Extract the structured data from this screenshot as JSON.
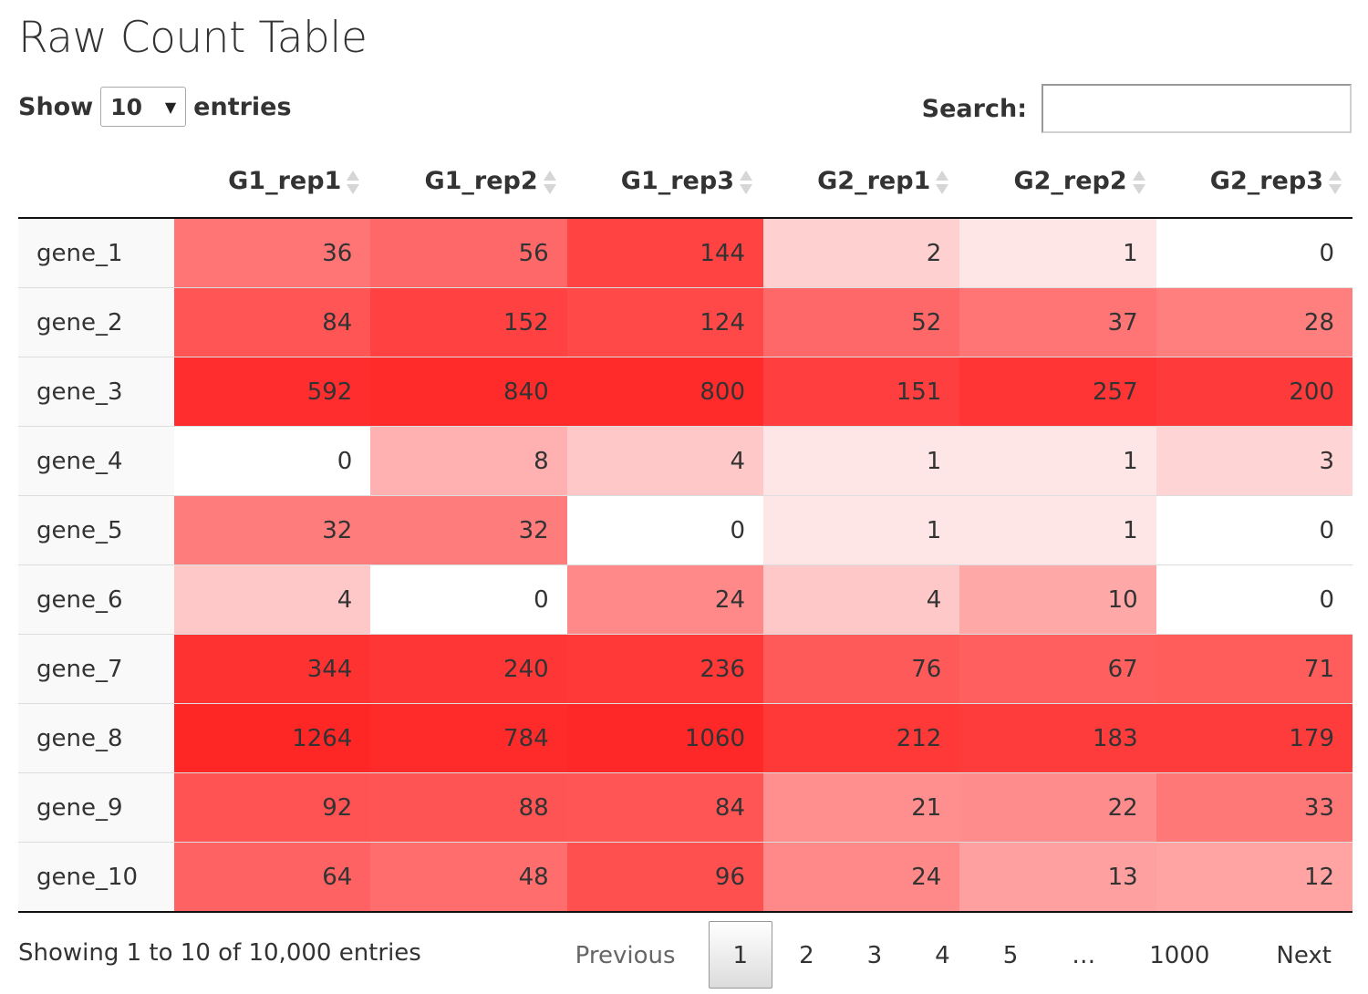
{
  "title": "Raw Count Table",
  "length_control": {
    "show_label": "Show",
    "value": "10",
    "entries_label": "entries"
  },
  "search": {
    "label": "Search:",
    "value": ""
  },
  "table": {
    "corner": "",
    "columns": [
      "G1_rep1",
      "G1_rep2",
      "G1_rep3",
      "G2_rep1",
      "G2_rep2",
      "G2_rep3"
    ],
    "rows": [
      {
        "gene": "gene_1",
        "values": [
          "36",
          "56",
          "144",
          "2",
          "1",
          "0"
        ],
        "colors": [
          "#ff7575",
          "#ff6868",
          "#ff4343",
          "#ffd0d0",
          "#ffe6e6",
          "#ffffff"
        ]
      },
      {
        "gene": "gene_2",
        "values": [
          "84",
          "152",
          "124",
          "52",
          "37",
          "28"
        ],
        "colors": [
          "#ff5555",
          "#ff4141",
          "#ff4949",
          "#ff6868",
          "#ff7474",
          "#ff7e7e"
        ]
      },
      {
        "gene": "gene_3",
        "values": [
          "592",
          "840",
          "800",
          "151",
          "257",
          "200"
        ],
        "colors": [
          "#ff2d2d",
          "#ff2b2b",
          "#ff2b2b",
          "#ff3f3f",
          "#ff3535",
          "#ff3a3a"
        ]
      },
      {
        "gene": "gene_4",
        "values": [
          "0",
          "8",
          "4",
          "1",
          "1",
          "3"
        ],
        "colors": [
          "#ffffff",
          "#ffb0b0",
          "#ffc8c8",
          "#ffe6e6",
          "#ffe6e6",
          "#ffd4d4"
        ]
      },
      {
        "gene": "gene_5",
        "values": [
          "32",
          "32",
          "0",
          "1",
          "1",
          "0"
        ],
        "colors": [
          "#ff7c7c",
          "#ff7c7c",
          "#ffffff",
          "#ffe6e6",
          "#ffe6e6",
          "#ffffff"
        ]
      },
      {
        "gene": "gene_6",
        "values": [
          "4",
          "0",
          "24",
          "4",
          "10",
          "0"
        ],
        "colors": [
          "#ffc8c8",
          "#ffffff",
          "#ff8888",
          "#ffc8c8",
          "#ffa8a8",
          "#ffffff"
        ]
      },
      {
        "gene": "gene_7",
        "values": [
          "344",
          "240",
          "236",
          "76",
          "67",
          "71"
        ],
        "colors": [
          "#ff3232",
          "#ff3636",
          "#ff3838",
          "#ff5a5a",
          "#ff5f5f",
          "#ff5c5c"
        ]
      },
      {
        "gene": "gene_8",
        "values": [
          "1264",
          "784",
          "1060",
          "212",
          "183",
          "179"
        ],
        "colors": [
          "#ff2626",
          "#ff2b2b",
          "#ff2828",
          "#ff3838",
          "#ff3c3c",
          "#ff3c3c"
        ]
      },
      {
        "gene": "gene_9",
        "values": [
          "92",
          "88",
          "84",
          "21",
          "22",
          "33"
        ],
        "colors": [
          "#ff5252",
          "#ff5454",
          "#ff5555",
          "#ff8e8e",
          "#ff8c8c",
          "#ff7878"
        ]
      },
      {
        "gene": "gene_10",
        "values": [
          "64",
          "48",
          "96",
          "24",
          "13",
          "12"
        ],
        "colors": [
          "#ff6262",
          "#ff6d6d",
          "#ff5050",
          "#ff8888",
          "#ffa0a0",
          "#ffa3a3"
        ]
      }
    ]
  },
  "info": "Showing 1 to 10 of 10,000 entries",
  "pagination": {
    "previous": "Previous",
    "pages": [
      "1",
      "2",
      "3",
      "4",
      "5"
    ],
    "ellipsis": "…",
    "last": "1000",
    "next": "Next",
    "current": "1"
  }
}
